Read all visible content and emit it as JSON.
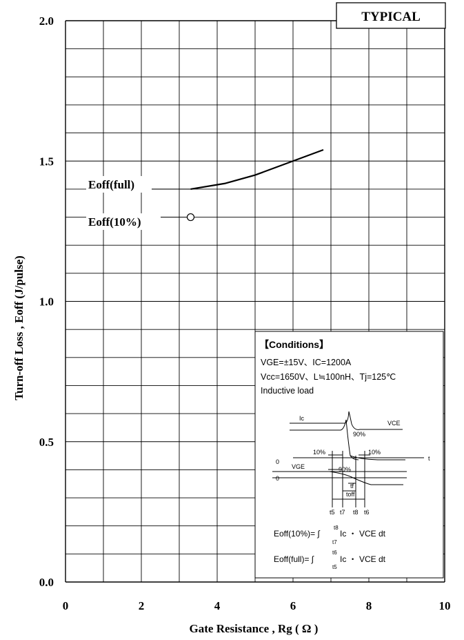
{
  "chart_data": {
    "type": "line",
    "badge": "TYPICAL",
    "xlabel": "Gate Resistance , Rg ( Ω )",
    "ylabel": "Turn-off Loss , Eoff (J/pulse)",
    "xlim": [
      0,
      10
    ],
    "ylim": [
      0,
      2.0
    ],
    "xticks": [
      "0",
      "2",
      "4",
      "6",
      "8",
      "10"
    ],
    "yticks": [
      "0.0",
      "0.5",
      "1.0",
      "1.5",
      "2.0"
    ],
    "grid": true,
    "series": [
      {
        "name": "Eoff(full)",
        "style": "line",
        "color": "#000000",
        "x": [
          3.3,
          4.2,
          5.0,
          6.0,
          6.8
        ],
        "y": [
          1.4,
          1.42,
          1.45,
          1.5,
          1.54
        ]
      },
      {
        "name": "Eoff(10%)",
        "style": "marker-open-circle",
        "color": "#000000",
        "x": [
          3.3
        ],
        "y": [
          1.3
        ]
      }
    ],
    "conditions": {
      "title": "【Conditions】",
      "lines": [
        "VGE=±15V、IC=1200A",
        "Vcc=1650V、L≒100nH、Tj=125℃",
        "Inductive load"
      ],
      "waveform_labels": {
        "ic": "Ic",
        "vce": "VCE",
        "vge": "VGE",
        "p90a": "90%",
        "p90b": "90%",
        "p10a": "10%",
        "p10b": "10%",
        "zero_a": "0",
        "zero_b": "0",
        "t": "t",
        "tf": "tf",
        "toff": "toff",
        "t5": "t5",
        "t7": "t7",
        "t8": "t8",
        "t6": "t6"
      },
      "eq10": {
        "lhs": "Eoff(10%)= ∫",
        "upper": "t8",
        "lower": "t7",
        "rhs": "Ic ・ VCE dt"
      },
      "eqfull": {
        "lhs": "Eoff(full)= ∫",
        "upper": "t6",
        "lower": "t5",
        "rhs": "Ic ・ VCE dt"
      }
    }
  }
}
